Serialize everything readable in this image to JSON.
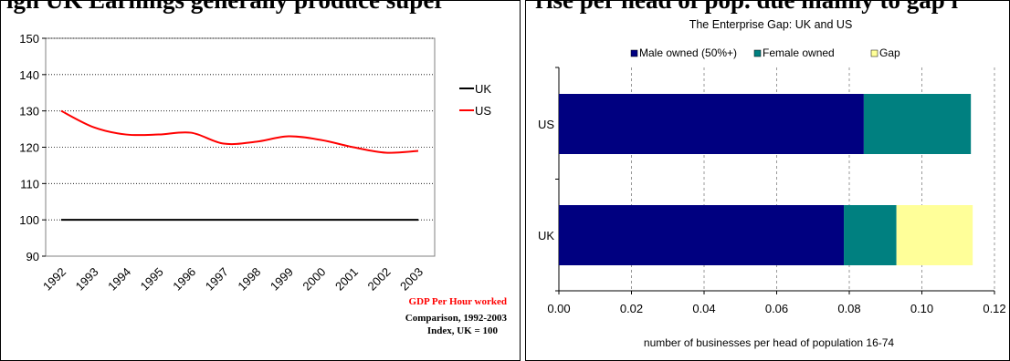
{
  "chart_data": [
    {
      "type": "line",
      "heading_clipped": "igh UK Earnings generally produce super",
      "title": "",
      "xlabel": "",
      "ylabel": "",
      "x": [
        "1992",
        "1993",
        "1994",
        "1995",
        "1996",
        "1997",
        "1998",
        "1999",
        "2000",
        "2001",
        "2002",
        "2003"
      ],
      "series": [
        {
          "name": "UK",
          "color": "#000000",
          "values": [
            100,
            100,
            100,
            100,
            100,
            100,
            100,
            100,
            100,
            100,
            100,
            100
          ]
        },
        {
          "name": "US",
          "color": "#ff0000",
          "values": [
            130,
            125.5,
            123.5,
            123.5,
            124,
            121,
            121.5,
            123,
            122,
            120,
            118.5,
            119
          ]
        }
      ],
      "ylim": [
        90,
        150
      ],
      "yticks": [
        90,
        100,
        110,
        120,
        130,
        140,
        150
      ],
      "grid": "horizontal dotted",
      "legend_position": "right",
      "notes": {
        "line1": "GDP Per Hour worked",
        "line2": "Comparison, 1992-2003",
        "line3": "Index, UK = 100",
        "line1_color": "#ff0000"
      }
    },
    {
      "type": "bar",
      "orientation": "horizontal",
      "stacked": true,
      "heading_clipped": "rise per head of pop. due mainly to gap i",
      "title": "The Enterprise Gap: UK and US",
      "categories": [
        "US",
        "UK"
      ],
      "series": [
        {
          "name": "Male owned (50%+)",
          "color": "#000080",
          "values": [
            0.084,
            0.0785
          ]
        },
        {
          "name": "Female owned",
          "color": "#008080",
          "values": [
            0.0295,
            0.0145
          ]
        },
        {
          "name": "Gap",
          "color": "#ffff99",
          "values": [
            0,
            0.021
          ]
        }
      ],
      "xlim": [
        0,
        0.12
      ],
      "xticks": [
        "0.00",
        "0.02",
        "0.04",
        "0.06",
        "0.08",
        "0.10",
        "0.12"
      ],
      "xlabel": "number of businesses per head of population 16-74",
      "ylabel": "",
      "grid": "vertical dashed",
      "legend_position": "top"
    }
  ]
}
